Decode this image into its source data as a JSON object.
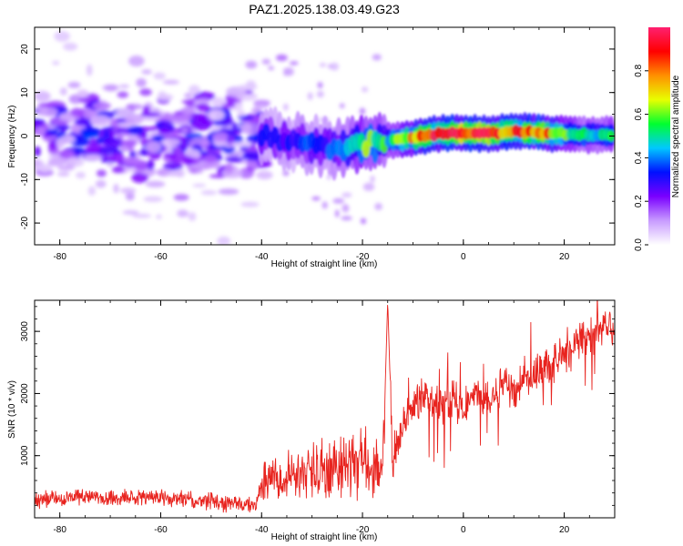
{
  "figure": {
    "title": "PAZ1.2025.138.03.49.G23"
  },
  "chart_data": [
    {
      "type": "heatmap",
      "xlabel": "Height of straight line (km)",
      "ylabel": "Frequency (Hz)",
      "xlim": [
        -85,
        30
      ],
      "ylim": [
        -25,
        25
      ],
      "x_ticks": [
        -80,
        -60,
        -40,
        -20,
        0,
        20
      ],
      "x_tick_labels": [
        "-80",
        "-60",
        "-40",
        "-20",
        "0",
        "20"
      ],
      "y_ticks": [
        -20,
        -10,
        0,
        10,
        20
      ],
      "y_tick_labels": [
        "-20",
        "-10",
        "0",
        "10",
        "20"
      ],
      "colorbar": {
        "label": "Normalized spectral amplitude",
        "range": [
          0,
          1
        ],
        "ticks": [
          0.0,
          0.2,
          0.4,
          0.6,
          0.8
        ],
        "tick_labels": [
          "0.0",
          "0.2",
          "0.4",
          "0.6",
          "0.8"
        ],
        "colors": [
          "#ffffff",
          "#c89bff",
          "#7a00ff",
          "#0010ff",
          "#00c8ff",
          "#00ff30",
          "#e8ff00",
          "#ff9000",
          "#ff0000",
          "#ff2070"
        ]
      },
      "ridge": {
        "x": [
          -40,
          -35,
          -30,
          -25,
          -20,
          -15,
          -10,
          -5,
          0,
          5,
          10,
          15,
          20,
          25,
          30
        ],
        "freq": [
          0,
          -1,
          -2,
          -3,
          -2,
          -1,
          -0.5,
          0.5,
          0.8,
          0.5,
          1.2,
          0.8,
          0.5,
          0.3,
          0.3
        ],
        "amplitude": [
          0.3,
          0.3,
          0.35,
          0.35,
          0.6,
          0.5,
          0.75,
          0.9,
          0.95,
          0.9,
          0.8,
          0.9,
          0.55,
          0.5,
          0.5
        ]
      }
    },
    {
      "type": "line",
      "xlabel": "Height of straight line (km)",
      "ylabel": "SNR (10 * v/v)",
      "xlim": [
        -85,
        30
      ],
      "ylim": [
        0,
        3500
      ],
      "x_ticks": [
        -80,
        -60,
        -40,
        -20,
        0,
        20
      ],
      "x_tick_labels": [
        "-80",
        "-60",
        "-40",
        "-20",
        "0",
        "20"
      ],
      "y_ticks": [
        1000,
        2000,
        3000
      ],
      "y_tick_labels": [
        "1000",
        "2000",
        "3000"
      ],
      "color": "#e8231e",
      "series": [
        {
          "x": [
            -85,
            -80,
            -75,
            -70,
            -65,
            -60,
            -55,
            -50,
            -45,
            -41,
            -40,
            -38,
            -35,
            -32,
            -30,
            -28,
            -25,
            -22,
            -20,
            -18,
            -16,
            -15,
            -14,
            -12,
            -10,
            -8,
            -6,
            -4,
            -2,
            0,
            2,
            4,
            6,
            8,
            10,
            12,
            14,
            16,
            18,
            20,
            22,
            24,
            26,
            28,
            30
          ],
          "values": [
            300,
            320,
            340,
            300,
            320,
            330,
            300,
            250,
            220,
            180,
            500,
            600,
            680,
            720,
            780,
            760,
            850,
            900,
            950,
            850,
            700,
            3500,
            800,
            1500,
            1800,
            1850,
            1900,
            1800,
            1900,
            1700,
            1950,
            1800,
            2000,
            2150,
            2050,
            2200,
            2300,
            2450,
            2500,
            2650,
            2800,
            2850,
            2950,
            3050,
            3100
          ]
        }
      ]
    }
  ]
}
